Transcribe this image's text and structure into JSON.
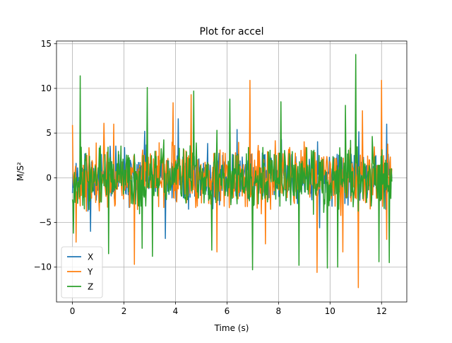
{
  "chart_data": {
    "type": "line",
    "title": "Plot for accel",
    "xlabel": "Time (s)",
    "ylabel": "M/S²",
    "xlim": [
      -0.62,
      12.98
    ],
    "ylim": [
      -13.9,
      15.3
    ],
    "xticks": [
      0,
      2,
      4,
      6,
      8,
      10,
      12
    ],
    "xtick_labels": [
      "0",
      "2",
      "4",
      "6",
      "8",
      "10",
      "12"
    ],
    "yticks": [
      -10,
      -5,
      0,
      5,
      10,
      15
    ],
    "ytick_labels": [
      "−10",
      "−5",
      "0",
      "5",
      "10",
      "15"
    ],
    "grid": true,
    "legend_position": "lower-left",
    "series": [
      {
        "name": "X",
        "color": "#1f77b4",
        "t_range": [
          0,
          12.4
        ],
        "samples": 620,
        "amplitude": 2.4,
        "seed": 11,
        "peaks": [
          [
            2.8,
            5.2
          ],
          [
            3.6,
            -6.8
          ],
          [
            4.1,
            6.6
          ],
          [
            6.4,
            5.4
          ],
          [
            9.6,
            -5.6
          ],
          [
            12.2,
            6.0
          ],
          [
            0.7,
            -6.0
          ]
        ]
      },
      {
        "name": "Y",
        "color": "#ff7f0e",
        "t_range": [
          0,
          12.4
        ],
        "samples": 620,
        "amplitude": 2.8,
        "seed": 23,
        "peaks": [
          [
            0.0,
            5.9
          ],
          [
            0.15,
            -7.2
          ],
          [
            1.6,
            6.0
          ],
          [
            2.4,
            -9.7
          ],
          [
            3.9,
            8.4
          ],
          [
            4.6,
            9.3
          ],
          [
            5.6,
            -8.3
          ],
          [
            6.9,
            10.9
          ],
          [
            7.5,
            -7.4
          ],
          [
            9.5,
            -10.6
          ],
          [
            10.5,
            -8.3
          ],
          [
            11.1,
            -12.3
          ],
          [
            11.25,
            7.5
          ],
          [
            12.0,
            10.9
          ],
          [
            12.2,
            -6.9
          ]
        ]
      },
      {
        "name": "Z",
        "color": "#2ca02c",
        "t_range": [
          0,
          12.4
        ],
        "samples": 620,
        "amplitude": 2.9,
        "seed": 37,
        "peaks": [
          [
            0.3,
            11.4
          ],
          [
            0.05,
            -6.2
          ],
          [
            1.4,
            -8.5
          ],
          [
            2.9,
            10.1
          ],
          [
            2.7,
            -7.9
          ],
          [
            3.1,
            -8.8
          ],
          [
            4.7,
            9.7
          ],
          [
            5.4,
            -8.1
          ],
          [
            6.1,
            8.8
          ],
          [
            8.1,
            8.5
          ],
          [
            8.8,
            -9.8
          ],
          [
            9.9,
            -10.1
          ],
          [
            10.3,
            -10.0
          ],
          [
            10.6,
            8.1
          ],
          [
            11.0,
            13.8
          ],
          [
            11.9,
            -9.4
          ],
          [
            12.3,
            -9.5
          ],
          [
            7.0,
            -10.3
          ]
        ]
      }
    ]
  }
}
